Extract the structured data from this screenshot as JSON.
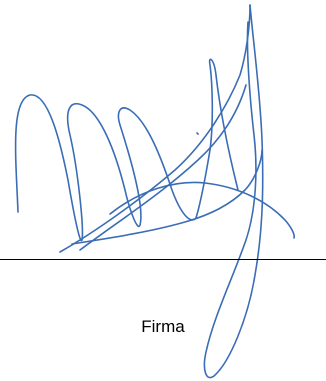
{
  "signature": {
    "caption": "Firma",
    "ink_color": "#3a6db5",
    "line_color": "#000000"
  }
}
